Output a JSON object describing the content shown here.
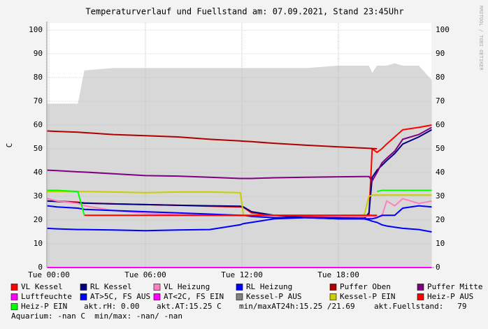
{
  "chart_data": {
    "type": "line",
    "title": "Temperaturverlauf und Fuellstand am: 07.09.2021, Stand 23:45Uhr",
    "y_label": "C",
    "watermark": "RRDTOOL / TOBI OETIKER",
    "x": [
      -0.1,
      0.5,
      1.8,
      2.2,
      4,
      6,
      8,
      10,
      11.9,
      12.1,
      12.6,
      14,
      16,
      18,
      19.6,
      19.9,
      20.1,
      20.4,
      20.7,
      21,
      21.5,
      22,
      23,
      23.8
    ],
    "xlim": [
      -0.13,
      23.78
    ],
    "xticks": [
      {
        "value": 0,
        "label": "Tue 00:00"
      },
      {
        "value": 6,
        "label": "Tue 06:00"
      },
      {
        "value": 12,
        "label": "Tue 12:00"
      },
      {
        "value": 18,
        "label": "Tue 18:00"
      }
    ],
    "ylim": [
      0,
      100
    ],
    "yticks": [
      0,
      10,
      20,
      30,
      40,
      50,
      60,
      70,
      80,
      90,
      100
    ],
    "grid": true,
    "area": {
      "color": "#d8d8d8",
      "values": [
        69,
        69,
        69,
        83,
        84,
        84,
        84,
        84,
        84,
        84,
        84,
        84,
        84,
        85,
        85,
        85,
        82,
        85,
        85,
        85,
        86,
        85,
        85,
        79
      ]
    },
    "series": [
      {
        "name": "VL Kessel",
        "color": "#ff0000",
        "values": [
          29,
          28,
          27.5,
          27.2,
          26.8,
          26.5,
          26.2,
          25.8,
          25.5,
          25.3,
          23,
          22,
          21.5,
          21,
          21,
          22,
          50,
          48.5,
          50,
          52,
          55,
          58,
          59,
          60
        ]
      },
      {
        "name": "RL Kessel",
        "color": "#000080",
        "values": [
          28,
          27.8,
          27.3,
          27.1,
          26.8,
          26.5,
          26.2,
          26,
          25.8,
          25.5,
          23.5,
          22,
          21,
          20.5,
          20.5,
          23,
          38,
          41,
          43,
          45,
          48,
          52,
          55,
          58
        ]
      },
      {
        "name": "VL Heizung",
        "color": "#ff80c0",
        "values": [
          29,
          28,
          27,
          26,
          24,
          22.8,
          22.3,
          22,
          21.8,
          21.8,
          22,
          22,
          22,
          21.5,
          21.5,
          21.5,
          21.5,
          21.5,
          21.5,
          28,
          26,
          29,
          27,
          28
        ]
      },
      {
        "name": "RL Heizung",
        "color": "#0000ff",
        "values": [
          26,
          25.5,
          25,
          24.5,
          24,
          23.5,
          23,
          22.5,
          22,
          22,
          21.5,
          21,
          21,
          20.5,
          20.5,
          20.5,
          20.5,
          21,
          22,
          22,
          22,
          25,
          26,
          25.5
        ]
      },
      {
        "name": "Puffer Oben",
        "color": "#b00000",
        "values": [
          57.5,
          57.3,
          57,
          56.8,
          56,
          55.5,
          55,
          54,
          53.3,
          53.2,
          53,
          52.3,
          51.5,
          50.8,
          50.3,
          50.2,
          50.1,
          50,
          null,
          null,
          null,
          null,
          null,
          null
        ]
      },
      {
        "name": "Puffer Mitte",
        "color": "#800080",
        "values": [
          41,
          40.8,
          40.3,
          40.2,
          39.5,
          38.7,
          38.5,
          38,
          37.5,
          37.5,
          37.5,
          37.8,
          38,
          38.2,
          38.3,
          38.3,
          36.5,
          40,
          44,
          46,
          49,
          54,
          56,
          59
        ]
      },
      {
        "name": "Luftfeuchte",
        "color": "#ff00ff",
        "values": [
          0,
          0,
          0,
          0,
          0,
          0,
          0,
          0,
          0,
          0,
          0,
          0,
          0,
          0,
          0,
          0,
          0,
          0,
          0,
          0,
          0,
          0,
          0,
          0
        ]
      },
      {
        "name": "AT>5C, FS AUS",
        "color": "#0000ff",
        "values": [
          16.5,
          16.3,
          16,
          16,
          15.8,
          15.5,
          15.8,
          16,
          18,
          18.5,
          19,
          20.5,
          21,
          21,
          20.5,
          20,
          19.5,
          19,
          18,
          17.5,
          17,
          16.5,
          16,
          15
        ]
      },
      {
        "name": "AT<2C, FS EIN",
        "color": "#ff00ff",
        "values": [
          null,
          null,
          null,
          null,
          null,
          null,
          null,
          null,
          null,
          null,
          null,
          null,
          null,
          null,
          null,
          null,
          null,
          null,
          null,
          null,
          null,
          null,
          null,
          null
        ]
      },
      {
        "name": "Kessel-P AUS",
        "color": "#808080",
        "values": [
          null,
          null,
          null,
          null,
          null,
          null,
          null,
          null,
          null,
          null,
          null,
          null,
          null,
          null,
          null,
          null,
          null,
          null,
          null,
          null,
          null,
          null,
          null,
          null
        ]
      },
      {
        "name": "Kessel-P EIN",
        "color": "#cccc00",
        "values": [
          32,
          32,
          32,
          32,
          31.8,
          31.5,
          31.8,
          31.8,
          31.5,
          22,
          22,
          22,
          22,
          22,
          22,
          30,
          30.5,
          30.5,
          30.5,
          30.5,
          30.5,
          30.5,
          30.5,
          30.5
        ]
      },
      {
        "name": "Heiz-P AUS",
        "color": "#ff0000",
        "values": [
          null,
          null,
          null,
          22,
          22,
          22,
          22,
          22,
          22,
          22,
          22,
          22,
          22,
          22,
          22,
          22,
          22,
          22,
          null,
          null,
          null,
          null,
          null,
          null
        ]
      },
      {
        "name": "Heiz-P EIN",
        "color": "#00ff00",
        "values": [
          32.5,
          32.5,
          32,
          22,
          null,
          null,
          null,
          null,
          null,
          null,
          null,
          null,
          null,
          null,
          null,
          null,
          null,
          32,
          32.5,
          32.5,
          32.5,
          32.5,
          32.5,
          32.5
        ]
      }
    ],
    "stats": [
      "akt.rH: 0.00",
      "akt.AT:15.25 C",
      "min/maxAT24h:15.25 /21.69",
      "akt.Fuellstand:   79"
    ],
    "aquarium": "Aquarium: -nan C  min/max: -nan/ -nan"
  }
}
